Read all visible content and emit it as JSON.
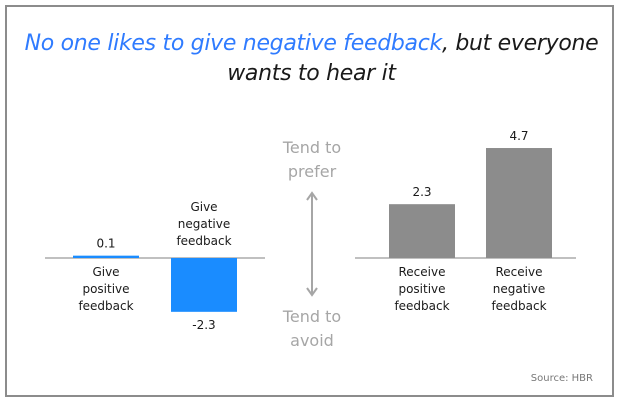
{
  "title": {
    "highlight": "No one likes to give negative feedback",
    "rest_line1": ", but everyone",
    "rest_line2": "wants to hear it"
  },
  "colors": {
    "give_bar": "#1a8cff",
    "receive_bar": "#8c8c8c",
    "axis": "#808080",
    "arrow": "#a6a6a6",
    "highlight_text": "#2f7bff"
  },
  "scale": {
    "prefer_label": [
      "Tend to",
      "prefer"
    ],
    "avoid_label": [
      "Tend to",
      "avoid"
    ]
  },
  "source": "Source: HBR",
  "chart_data": [
    {
      "type": "bar",
      "group": "give",
      "categories": [
        [
          "Give",
          "positive",
          "feedback"
        ],
        [
          "Give",
          "negative",
          "feedback"
        ]
      ],
      "values": [
        0.1,
        -2.3
      ],
      "value_labels": [
        "0.1",
        "-2.3"
      ],
      "ylim": [
        -2.3,
        4.7
      ]
    },
    {
      "type": "bar",
      "group": "receive",
      "categories": [
        [
          "Receive",
          "positive",
          "feedback"
        ],
        [
          "Receive",
          "negative",
          "feedback"
        ]
      ],
      "values": [
        2.3,
        4.7
      ],
      "value_labels": [
        "2.3",
        "4.7"
      ],
      "ylim": [
        -2.3,
        4.7
      ]
    }
  ]
}
